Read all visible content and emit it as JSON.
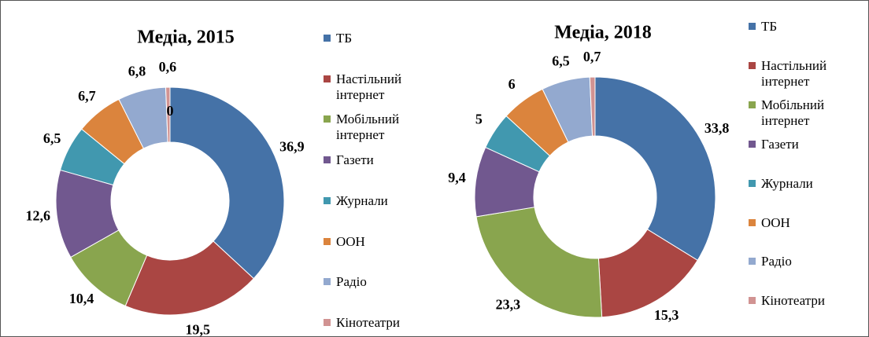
{
  "chart_data": [
    {
      "type": "pie",
      "title": "Медіа, 2015",
      "categories": [
        "ТБ",
        "Настільний інтернет",
        "Мобільний інтернет",
        "Газети",
        "Журнали",
        "ООН",
        "Радіо",
        "Кінотеатри",
        null
      ],
      "values": [
        36.9,
        19.5,
        10.4,
        12.6,
        6.5,
        6.7,
        6.8,
        0.6,
        0
      ],
      "value_labels": [
        "36,9",
        "19,5",
        "10,4",
        "12,6",
        "6,5",
        "6,7",
        "6,8",
        "0,6",
        "0"
      ],
      "colors": [
        "#4572a7",
        "#aa4643",
        "#89a54e",
        "#71588f",
        "#4198af",
        "#db843d",
        "#93a9cf",
        "#d19392",
        "#d19392"
      ]
    },
    {
      "type": "pie",
      "title": "Медіа, 2018",
      "categories": [
        "ТБ",
        "Настільний інтернет",
        "Мобільний інтернет",
        "Газети",
        "Журнали",
        "ООН",
        "Радіо",
        "Кінотеатри"
      ],
      "values": [
        33.8,
        15.3,
        23.3,
        9.4,
        5,
        6,
        6.5,
        0.7
      ],
      "value_labels": [
        "33,8",
        "15,3",
        "23,3",
        "9,4",
        "5",
        "6",
        "6,5",
        "0,7"
      ],
      "colors": [
        "#4572a7",
        "#aa4643",
        "#89a54e",
        "#71588f",
        "#4198af",
        "#db843d",
        "#93a9cf",
        "#d19392"
      ]
    }
  ]
}
